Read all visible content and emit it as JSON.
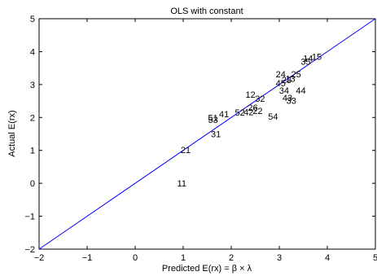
{
  "chart_data": {
    "type": "scatter",
    "title": "OLS with constant",
    "xlabel": "Predicted E(rx) = β × λ",
    "ylabel": "Actual E(rx)",
    "xlim": [
      -2,
      5
    ],
    "ylim": [
      -2,
      5
    ],
    "xticks": [
      -2,
      -1,
      0,
      1,
      2,
      3,
      4,
      5
    ],
    "yticks": [
      -2,
      -1,
      0,
      1,
      2,
      3,
      4,
      5
    ],
    "xtick_labels": [
      "−2",
      "−1",
      "0",
      "1",
      "2",
      "3",
      "4",
      "5"
    ],
    "ytick_labels": [
      "−2",
      "−1",
      "0",
      "1",
      "2",
      "3",
      "4",
      "5"
    ],
    "grid": false,
    "legend": "none",
    "reference_line": {
      "from": [
        -2,
        -2
      ],
      "to": [
        5,
        5
      ],
      "color": "#0000ff"
    },
    "marker_style": "text labels",
    "points": [
      {
        "label": "11",
        "x": 0.97,
        "y": 0.0
      },
      {
        "label": "21",
        "x": 1.05,
        "y": 1.02
      },
      {
        "label": "31",
        "x": 1.68,
        "y": 1.5
      },
      {
        "label": "53",
        "x": 1.62,
        "y": 1.93
      },
      {
        "label": "51",
        "x": 1.62,
        "y": 2.0
      },
      {
        "label": "41",
        "x": 1.85,
        "y": 2.1
      },
      {
        "label": "52",
        "x": 2.18,
        "y": 2.15
      },
      {
        "label": "42",
        "x": 2.36,
        "y": 2.17
      },
      {
        "label": "22",
        "x": 2.55,
        "y": 2.2
      },
      {
        "label": "26",
        "x": 2.45,
        "y": 2.3
      },
      {
        "label": "32",
        "x": 2.6,
        "y": 2.57
      },
      {
        "label": "12",
        "x": 2.4,
        "y": 2.7
      },
      {
        "label": "54",
        "x": 2.87,
        "y": 2.03
      },
      {
        "label": "33",
        "x": 3.25,
        "y": 2.52
      },
      {
        "label": "43",
        "x": 3.17,
        "y": 2.6
      },
      {
        "label": "34",
        "x": 3.1,
        "y": 2.82
      },
      {
        "label": "44",
        "x": 3.45,
        "y": 2.82
      },
      {
        "label": "45",
        "x": 3.03,
        "y": 3.05
      },
      {
        "label": "23",
        "x": 3.15,
        "y": 3.15
      },
      {
        "label": "13",
        "x": 3.23,
        "y": 3.18
      },
      {
        "label": "24",
        "x": 3.03,
        "y": 3.32
      },
      {
        "label": "25",
        "x": 3.35,
        "y": 3.32
      },
      {
        "label": "35",
        "x": 3.55,
        "y": 3.7
      },
      {
        "label": "14",
        "x": 3.6,
        "y": 3.8
      },
      {
        "label": "15",
        "x": 3.78,
        "y": 3.85
      }
    ]
  }
}
